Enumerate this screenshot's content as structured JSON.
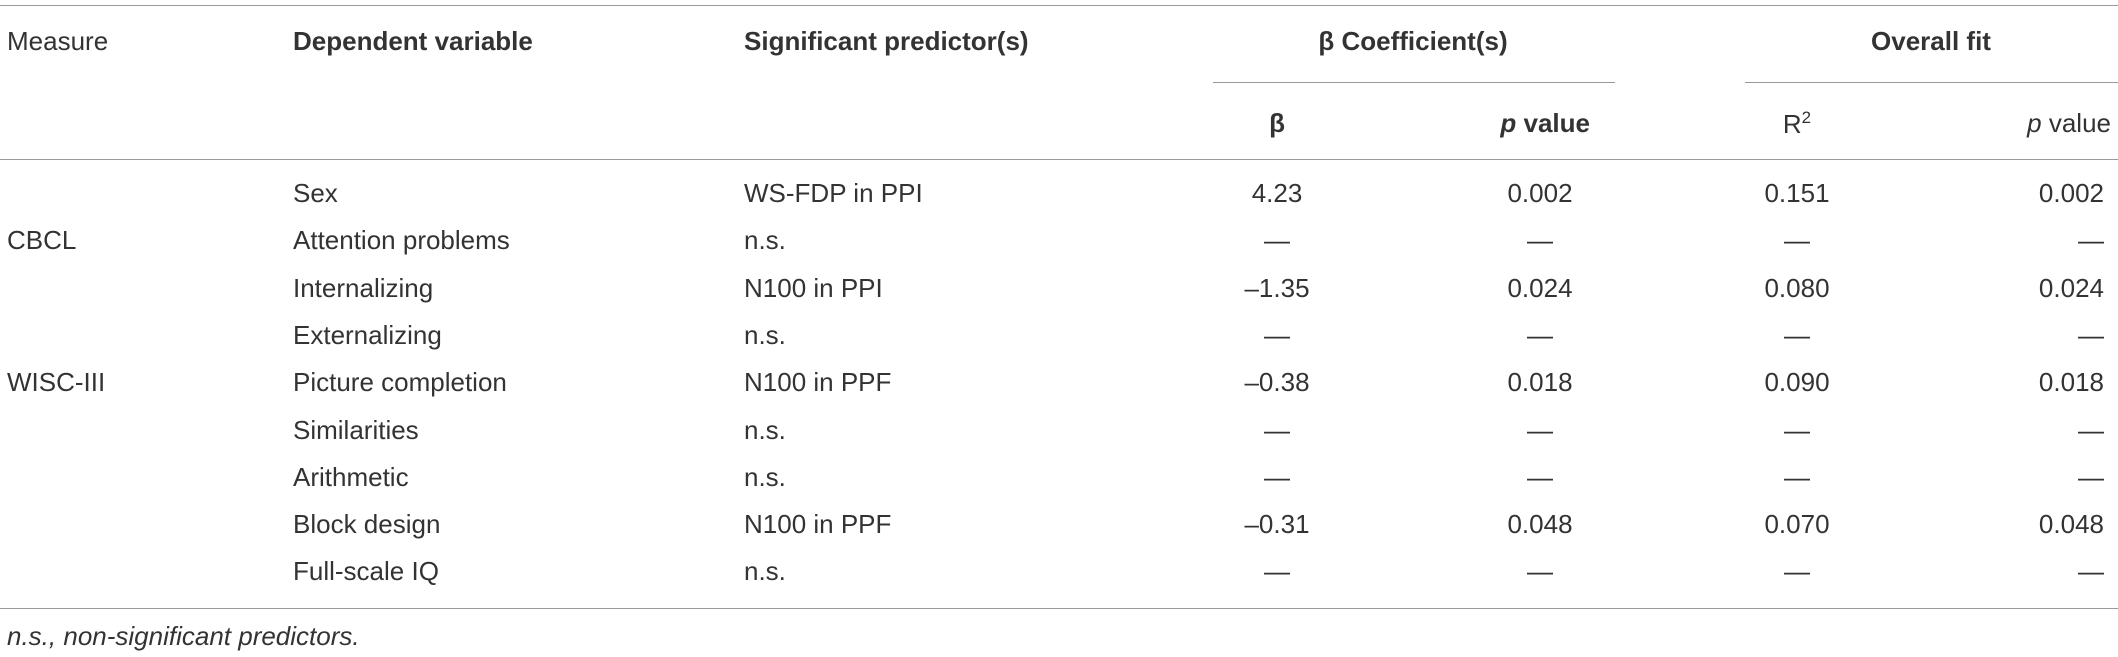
{
  "header": {
    "measure": "Measure",
    "dependent": "Dependent variable",
    "predictor": "Significant predictor(s)",
    "beta_group": "β Coefficient(s)",
    "fit_group": "Overall fit",
    "beta": "β",
    "beta_p": {
      "italic": "p",
      "rest": " value"
    },
    "r2": {
      "base": "R",
      "sup": "2"
    },
    "fit_p": {
      "italic": "p",
      "rest": " value"
    }
  },
  "table": {
    "rows": [
      [
        null,
        "Sex",
        "WS-FDP in PPI",
        "4.23",
        "0.002",
        "0.151",
        "0.002"
      ],
      [
        "CBCL",
        "Attention problems",
        "n.s.",
        "—",
        "—",
        "—",
        "—"
      ],
      [
        null,
        "Internalizing",
        "N100 in PPI",
        "–1.35",
        "0.024",
        "0.080",
        "0.024"
      ],
      [
        null,
        "Externalizing",
        "n.s.",
        "—",
        "—",
        "—",
        "—"
      ],
      [
        "WISC-III",
        "Picture completion",
        "N100 in PPF",
        "–0.38",
        "0.018",
        "0.090",
        "0.018"
      ],
      [
        null,
        "Similarities",
        "n.s.",
        "—",
        "—",
        "—",
        "—"
      ],
      [
        null,
        "Arithmetic",
        "n.s.",
        "—",
        "—",
        "—",
        "—"
      ],
      [
        null,
        "Block design",
        "N100 in PPF",
        "–0.31",
        "0.048",
        "0.070",
        "0.048"
      ],
      [
        null,
        "Full-scale IQ",
        "n.s.",
        "—",
        "—",
        "—",
        "—"
      ]
    ]
  },
  "footnote": "n.s., non-significant predictors."
}
